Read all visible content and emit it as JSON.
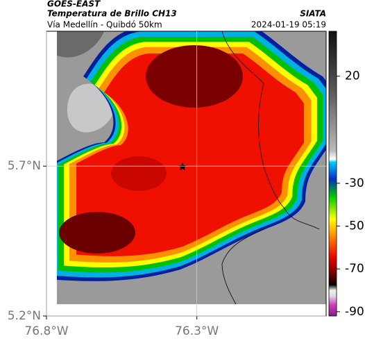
{
  "map": {
    "header": {
      "source": "GOES-EAST",
      "title": "Temperatura de Brillo CH13",
      "agency": "SIATA",
      "subtitle": "Vía Medellín - Quibdó 50km",
      "datetime": "2024-01-19 05:19"
    },
    "xlim": [
      -76.8,
      -75.87
    ],
    "ylim": [
      5.2,
      6.15
    ],
    "xticks": [
      {
        "value": -76.8,
        "label": "76.8°W"
      },
      {
        "value": -76.3,
        "label": "76.3°W"
      }
    ],
    "yticks": [
      {
        "value": 5.2,
        "label": "5.2°N"
      },
      {
        "value": 5.7,
        "label": "5.7°N"
      }
    ],
    "grid": true,
    "colorbar": {
      "clim": [
        -92,
        41
      ],
      "ticks": [
        20,
        -30,
        -50,
        -70,
        -90
      ]
    }
  }
}
